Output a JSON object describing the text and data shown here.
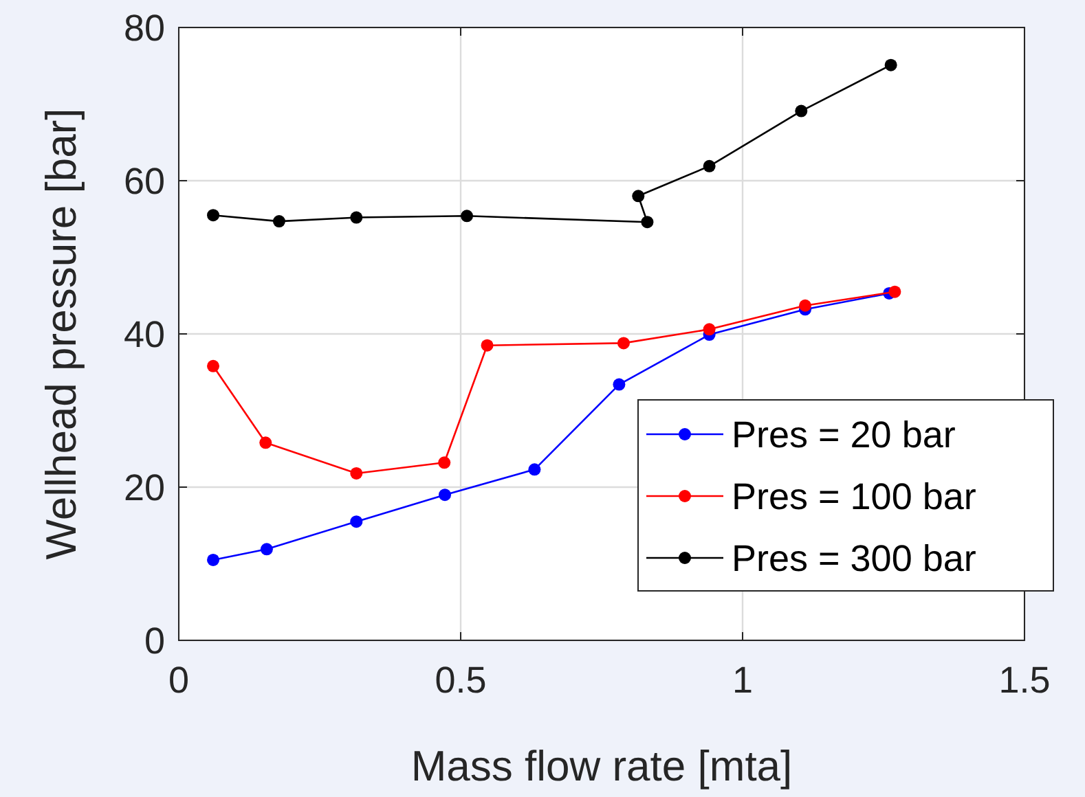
{
  "chart_data": {
    "type": "line",
    "xlabel": "Mass flow rate [mta]",
    "ylabel": "Wellhead pressure [bar]",
    "xlim": [
      0,
      1.5
    ],
    "xticks": [
      0,
      0.5,
      1,
      1.5
    ],
    "ylim": [
      0,
      80
    ],
    "yticks": [
      0,
      20,
      40,
      60,
      80
    ],
    "grid": true,
    "legend": "bottom right",
    "marker": "circle",
    "line_style": "solid",
    "series": [
      {
        "name": "Pres = 20 bar",
        "color": "#0000ff",
        "x": [
          0.061,
          0.156,
          0.315,
          0.472,
          0.631,
          0.781,
          0.941,
          1.111,
          1.26
        ],
        "values": [
          10.5,
          11.9,
          15.5,
          19.0,
          22.3,
          33.4,
          39.9,
          43.2,
          45.3
        ]
      },
      {
        "name": "Pres = 100 bar",
        "color": "#ff0000",
        "x": [
          0.061,
          0.154,
          0.315,
          0.471,
          0.547,
          0.789,
          0.941,
          1.111,
          1.27
        ],
        "values": [
          35.8,
          25.8,
          21.8,
          23.2,
          38.5,
          38.8,
          40.6,
          43.7,
          45.5
        ]
      },
      {
        "name": "Pres = 300 bar",
        "color": "#000000",
        "x": [
          0.061,
          0.178,
          0.315,
          0.511,
          0.831,
          0.815,
          0.941,
          1.104,
          1.263
        ],
        "values": [
          55.5,
          54.7,
          55.2,
          55.4,
          54.6,
          58.0,
          61.9,
          69.1,
          75.1
        ]
      }
    ]
  }
}
